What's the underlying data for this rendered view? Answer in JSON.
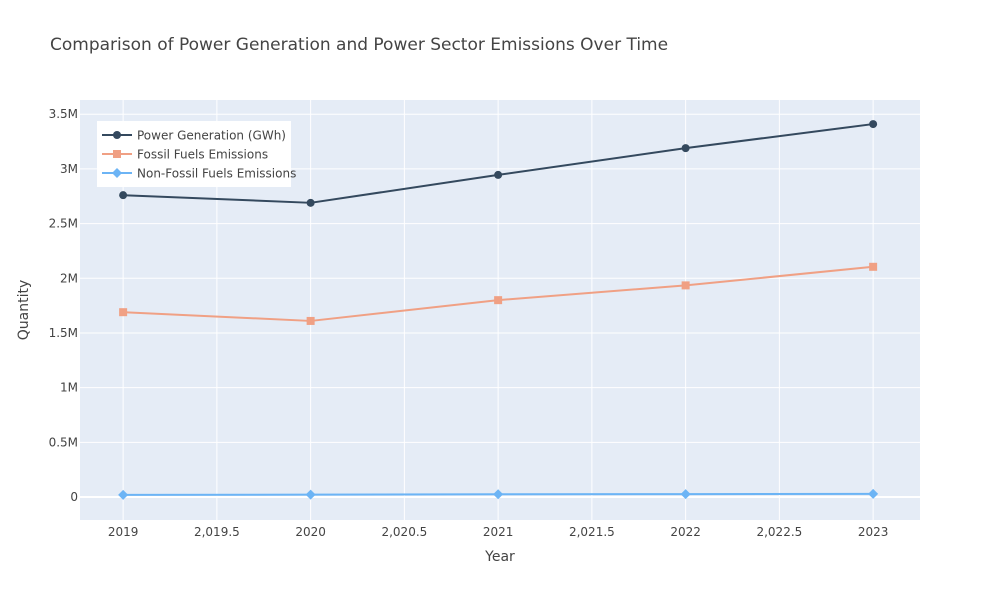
{
  "chart_data": {
    "type": "line",
    "title": "Comparison of Power Generation and Power Sector Emissions Over Time",
    "xlabel": "Year",
    "ylabel": "Quantity",
    "xlim": [
      2018.77,
      2023.25
    ],
    "ylim": [
      -210000,
      3630000
    ],
    "x_ticks": [
      2019,
      2019.5,
      2020,
      2020.5,
      2021,
      2021.5,
      2022,
      2022.5,
      2023
    ],
    "x_tick_labels": [
      "2019",
      "2,019.5",
      "2020",
      "2,020.5",
      "2021",
      "2,021.5",
      "2022",
      "2,022.5",
      "2023"
    ],
    "y_ticks": [
      0,
      500000,
      1000000,
      1500000,
      2000000,
      2500000,
      3000000,
      3500000
    ],
    "y_tick_labels": [
      "0",
      "0.5M",
      "1M",
      "1.5M",
      "2M",
      "2.5M",
      "3M",
      "3.5M"
    ],
    "grid": true,
    "legend_position": "top-left",
    "plot_background": "#e5ecf6",
    "x": [
      2019,
      2020,
      2021,
      2022,
      2023
    ],
    "series": [
      {
        "name": "Power Generation (GWh)",
        "color": "#34495e",
        "marker": "circle",
        "values": [
          2760000,
          2690000,
          2945000,
          3190000,
          3410000
        ]
      },
      {
        "name": "Fossil Fuels Emissions",
        "color": "#f0a084",
        "marker": "square",
        "values": [
          1690000,
          1610000,
          1800000,
          1935000,
          2105000
        ]
      },
      {
        "name": "Non-Fossil Fuels Emissions",
        "color": "#6cb4f5",
        "marker": "diamond",
        "values": [
          20000,
          22000,
          25000,
          27000,
          29000
        ]
      }
    ]
  }
}
